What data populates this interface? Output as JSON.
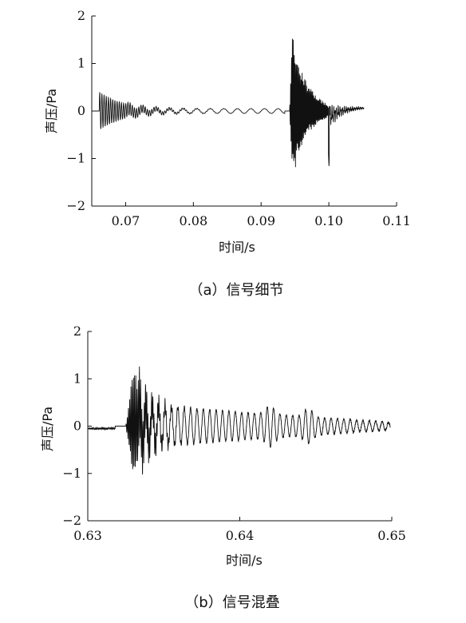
{
  "chart_data": [
    {
      "type": "line",
      "caption": "（a）信号细节",
      "xlabel": "时间/s",
      "ylabel": "声压/Pa",
      "xlim": [
        0.065,
        0.11
      ],
      "ylim": [
        -2,
        2
      ],
      "xticks": [
        0.07,
        0.08,
        0.09,
        0.1,
        0.11
      ],
      "xtick_labels": [
        "0.07",
        "0.08",
        "0.09",
        "0.10",
        "0.11"
      ],
      "yticks": [
        2,
        1,
        0,
        -1,
        -2
      ],
      "ytick_labels": [
        "2",
        "1",
        "0",
        "−1",
        "−2"
      ],
      "grid": false,
      "line_color": "#111111",
      "series": [
        {
          "t_start": 0.0655,
          "t_end": 0.1052,
          "events": [
            {
              "kind": "onset_ringdown",
              "t0": 0.0661,
              "amplitude": 0.4,
              "decay_s": 0.004,
              "period_s": 0.00032
            },
            {
              "kind": "low_wobble",
              "t0": 0.07,
              "t1": 0.0935,
              "amplitude": 0.05,
              "period_s": 0.002
            },
            {
              "kind": "burst",
              "t0": 0.0942,
              "t_peak": 0.0946,
              "peak_max": 1.65,
              "peak_min": -1.5,
              "decay_s": 0.0022,
              "period_s": 0.00013
            },
            {
              "kind": "spike",
              "t": 0.1,
              "min": -1.05
            },
            {
              "kind": "recovery_ringdown",
              "t0": 0.1001,
              "t1": 0.1052,
              "amplitude": 0.15,
              "decay_s": 0.002,
              "period_s": 0.0003,
              "end_value": 0.08
            }
          ]
        }
      ]
    },
    {
      "type": "line",
      "caption": "（b）信号混叠",
      "xlabel": "时间/s",
      "ylabel": "声压/Pa",
      "xlim": [
        0.63,
        0.65
      ],
      "ylim": [
        -2,
        2
      ],
      "xticks": [
        0.63,
        0.64,
        0.65
      ],
      "xtick_labels": [
        "0.63",
        "0.64",
        "0.65"
      ],
      "yticks": [
        2,
        1,
        0,
        -1,
        -2
      ],
      "ytick_labels": [
        "2",
        "1",
        "0",
        "−1",
        "−2"
      ],
      "grid": false,
      "line_color": "#111111",
      "series": [
        {
          "t_start": 0.63,
          "t_end": 0.6499,
          "events": [
            {
              "kind": "flat_noise",
              "t0": 0.63,
              "t1": 0.6318,
              "amplitude": 0.04,
              "baseline": -0.05
            },
            {
              "kind": "burst",
              "t0": 0.6325,
              "t_peak": 0.633,
              "peak_max": 1.35,
              "peak_min": -1.15,
              "decay_s": 0.001,
              "period_s": 8e-05
            },
            {
              "kind": "oscillation",
              "t0": 0.6333,
              "t1": 0.6499,
              "amplitude_start": 0.45,
              "amplitude_end": 0.08,
              "period_s": 0.00042,
              "secondary_bursts_at": [
                0.642,
                0.6445
              ]
            }
          ]
        }
      ]
    }
  ]
}
